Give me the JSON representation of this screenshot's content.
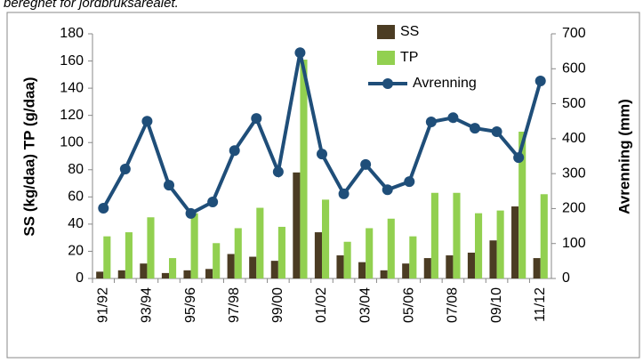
{
  "chart_data": {
    "type": "bar-line",
    "caption": "beregnet for jordbruksarealet.",
    "categories": [
      "91/92",
      null,
      "93/94",
      null,
      "95/96",
      null,
      "97/98",
      null,
      "99/00",
      null,
      "01/02",
      null,
      "03/04",
      null,
      "05/06",
      null,
      "07/08",
      null,
      "09/10",
      null,
      "11/12"
    ],
    "series": [
      {
        "name": "SS",
        "color": "#4b3c23",
        "type": "bar",
        "values": [
          5,
          6,
          11,
          4,
          6,
          7,
          18,
          16,
          13,
          78,
          34,
          17,
          12,
          6,
          11,
          15,
          17,
          19,
          28,
          53,
          15
        ]
      },
      {
        "name": "TP",
        "color": "#92d050",
        "type": "bar",
        "values": [
          31,
          34,
          45,
          15,
          48,
          26,
          37,
          52,
          38,
          161,
          58,
          27,
          37,
          44,
          31,
          63,
          63,
          48,
          50,
          108,
          62
        ]
      },
      {
        "name": "Avrenning",
        "color": "#1f4e79",
        "type": "line",
        "axis": "y2",
        "values": [
          201,
          313,
          450,
          267,
          186,
          219,
          366,
          458,
          305,
          646,
          356,
          242,
          326,
          254,
          277,
          448,
          460,
          430,
          420,
          346,
          565
        ]
      }
    ],
    "ylabel": "SS (kg/daa) TP (g/daa)",
    "y2label": "Avrenning (mm)",
    "ylim": [
      0,
      180
    ],
    "yticks": [
      0,
      20,
      40,
      60,
      80,
      100,
      120,
      140,
      160,
      180
    ],
    "y2lim": [
      0,
      700
    ],
    "y2ticks": [
      0,
      100,
      200,
      300,
      400,
      500,
      600,
      700
    ],
    "grid": false,
    "legend": "top-right"
  }
}
